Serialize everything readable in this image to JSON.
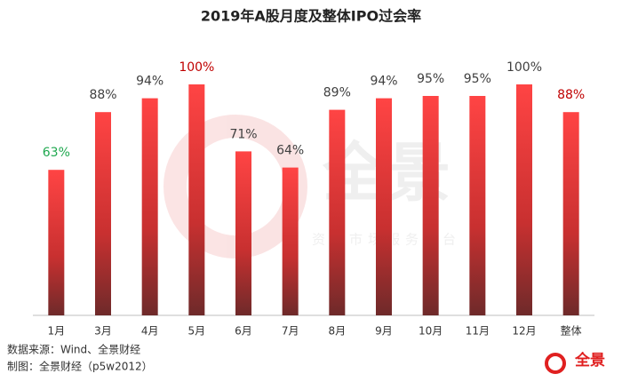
{
  "chart_data": {
    "type": "bar",
    "title": "2019年A股月度及整体IPO过会率",
    "categories": [
      "1月",
      "3月",
      "4月",
      "5月",
      "6月",
      "7月",
      "8月",
      "9月",
      "10月",
      "11月",
      "12月",
      "整体"
    ],
    "values": [
      63,
      88,
      94,
      100,
      71,
      64,
      89,
      94,
      95,
      95,
      100,
      88
    ],
    "value_labels": [
      "63%",
      "88%",
      "94%",
      "100%",
      "71%",
      "64%",
      "89%",
      "94%",
      "95%",
      "95%",
      "100%",
      "88%"
    ],
    "label_colors": [
      "#1fa84f",
      "#404040",
      "#404040",
      "#c00000",
      "#404040",
      "#404040",
      "#404040",
      "#404040",
      "#404040",
      "#404040",
      "#404040",
      "#c00000"
    ],
    "color": "#f03c3c",
    "source": "数据来源：Wind、全景财经",
    "credit": "制图：全景财经（p5w2012）",
    "watermark": "全景",
    "watermark_subtitle": "资本市场服务平台",
    "logo": "全景"
  }
}
